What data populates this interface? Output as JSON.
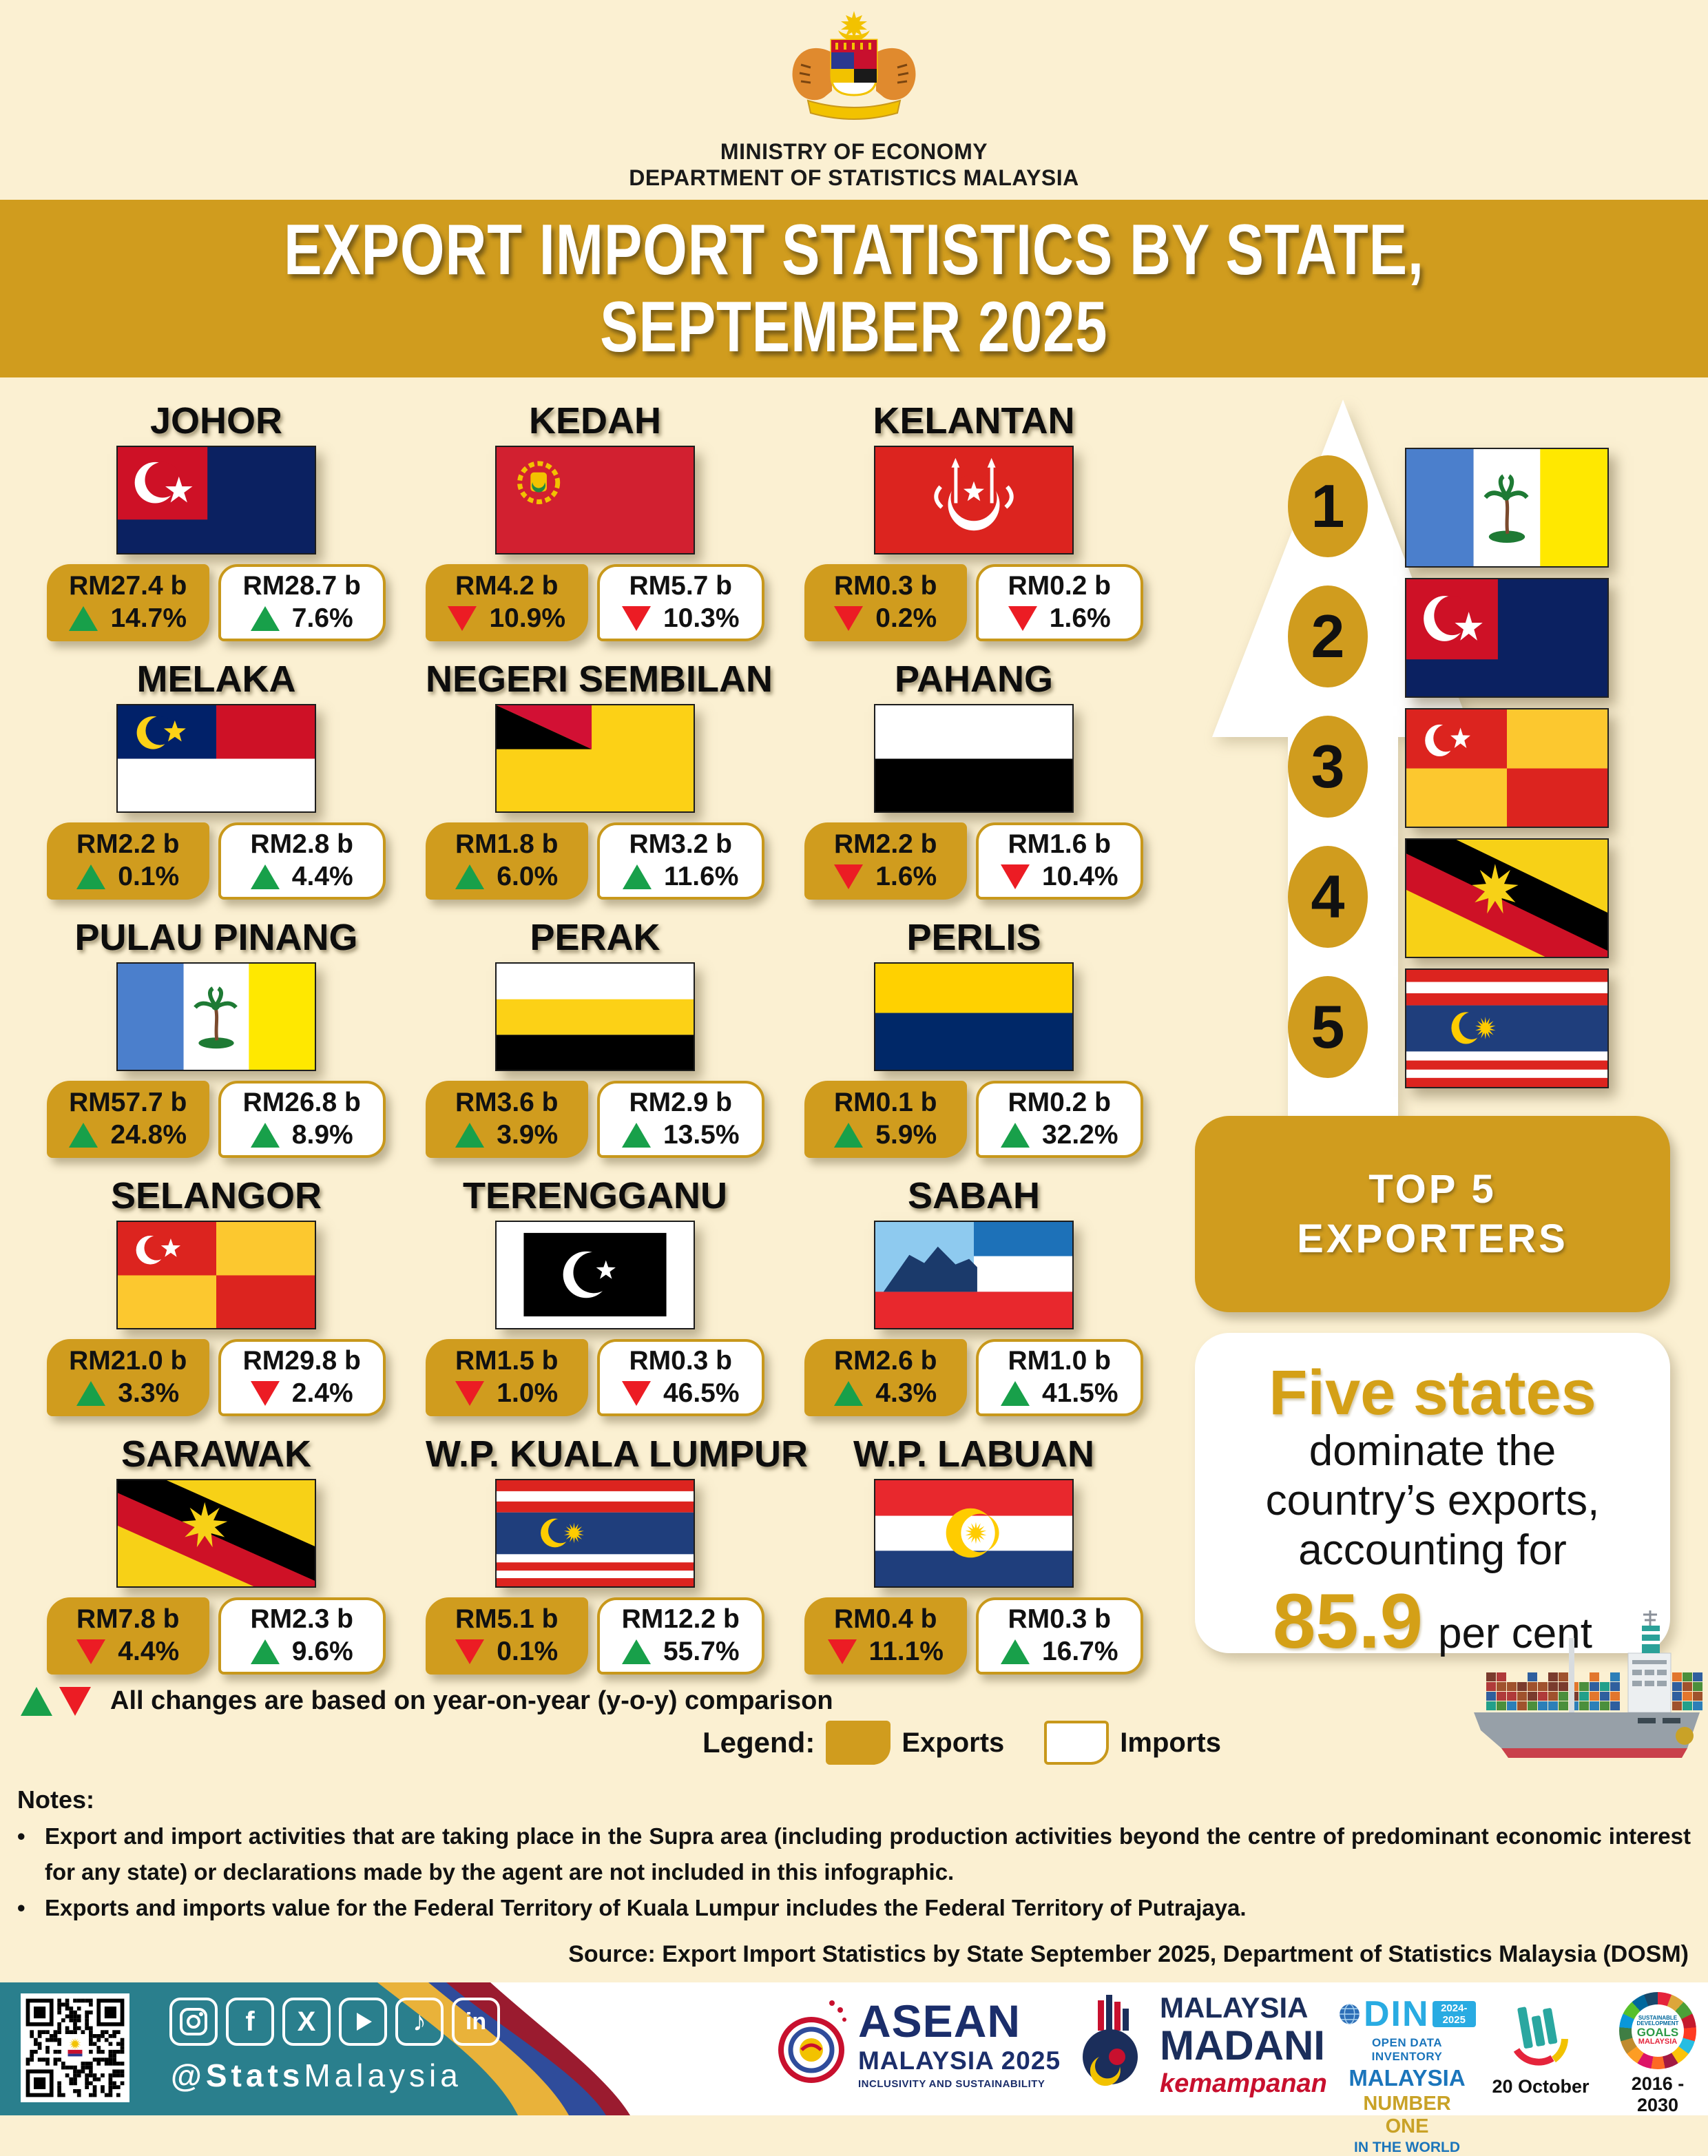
{
  "header": {
    "ministry": "MINISTRY OF ECONOMY",
    "department": "DEPARTMENT OF STATISTICS MALAYSIA"
  },
  "banner": {
    "line1": "EXPORT IMPORT STATISTICS BY STATE,",
    "line2": "SEPTEMBER 2025"
  },
  "states": [
    {
      "name": "JOHOR",
      "flag": "johor",
      "export": {
        "value": "RM27.4 b",
        "change": "14.7%",
        "direction": "up"
      },
      "import": {
        "value": "RM28.7 b",
        "change": "7.6%",
        "direction": "up"
      }
    },
    {
      "name": "KEDAH",
      "flag": "kedah",
      "export": {
        "value": "RM4.2 b",
        "change": "10.9%",
        "direction": "down"
      },
      "import": {
        "value": "RM5.7 b",
        "change": "10.3%",
        "direction": "down"
      }
    },
    {
      "name": "KELANTAN",
      "flag": "kelantan",
      "export": {
        "value": "RM0.3 b",
        "change": "0.2%",
        "direction": "down"
      },
      "import": {
        "value": "RM0.2 b",
        "change": "1.6%",
        "direction": "down"
      }
    },
    {
      "name": "MELAKA",
      "flag": "melaka",
      "export": {
        "value": "RM2.2 b",
        "change": "0.1%",
        "direction": "up"
      },
      "import": {
        "value": "RM2.8 b",
        "change": "4.4%",
        "direction": "up"
      }
    },
    {
      "name": "NEGERI SEMBILAN",
      "flag": "negeri-sembilan",
      "export": {
        "value": "RM1.8 b",
        "change": "6.0%",
        "direction": "up"
      },
      "import": {
        "value": "RM3.2 b",
        "change": "11.6%",
        "direction": "up"
      }
    },
    {
      "name": "PAHANG",
      "flag": "pahang",
      "export": {
        "value": "RM2.2 b",
        "change": "1.6%",
        "direction": "down"
      },
      "import": {
        "value": "RM1.6 b",
        "change": "10.4%",
        "direction": "down"
      }
    },
    {
      "name": "PULAU PINANG",
      "flag": "pulau-pinang",
      "export": {
        "value": "RM57.7 b",
        "change": "24.8%",
        "direction": "up"
      },
      "import": {
        "value": "RM26.8 b",
        "change": "8.9%",
        "direction": "up"
      }
    },
    {
      "name": "PERAK",
      "flag": "perak",
      "export": {
        "value": "RM3.6 b",
        "change": "3.9%",
        "direction": "up"
      },
      "import": {
        "value": "RM2.9 b",
        "change": "13.5%",
        "direction": "up"
      }
    },
    {
      "name": "PERLIS",
      "flag": "perlis",
      "export": {
        "value": "RM0.1 b",
        "change": "5.9%",
        "direction": "up"
      },
      "import": {
        "value": "RM0.2 b",
        "change": "32.2%",
        "direction": "up"
      }
    },
    {
      "name": "SELANGOR",
      "flag": "selangor",
      "export": {
        "value": "RM21.0 b",
        "change": "3.3%",
        "direction": "up"
      },
      "import": {
        "value": "RM29.8 b",
        "change": "2.4%",
        "direction": "down"
      }
    },
    {
      "name": "TERENGGANU",
      "flag": "terengganu",
      "export": {
        "value": "RM1.5 b",
        "change": "1.0%",
        "direction": "down"
      },
      "import": {
        "value": "RM0.3 b",
        "change": "46.5%",
        "direction": "down"
      }
    },
    {
      "name": "SABAH",
      "flag": "sabah",
      "export": {
        "value": "RM2.6 b",
        "change": "4.3%",
        "direction": "up"
      },
      "import": {
        "value": "RM1.0 b",
        "change": "41.5%",
        "direction": "up"
      }
    },
    {
      "name": "SARAWAK",
      "flag": "sarawak",
      "export": {
        "value": "RM7.8 b",
        "change": "4.4%",
        "direction": "down"
      },
      "import": {
        "value": "RM2.3 b",
        "change": "9.6%",
        "direction": "up"
      }
    },
    {
      "name": "W.P. KUALA LUMPUR",
      "flag": "kuala-lumpur",
      "export": {
        "value": "RM5.1 b",
        "change": "0.1%",
        "direction": "down"
      },
      "import": {
        "value": "RM12.2 b",
        "change": "55.7%",
        "direction": "up"
      }
    },
    {
      "name": "W.P. LABUAN",
      "flag": "labuan",
      "export": {
        "value": "RM0.4 b",
        "change": "11.1%",
        "direction": "down"
      },
      "import": {
        "value": "RM0.3 b",
        "change": "16.7%",
        "direction": "up"
      }
    }
  ],
  "top5": {
    "title_line1": "TOP 5",
    "title_line2": "EXPORTERS",
    "ranks": [
      {
        "rank": "1",
        "flag": "pulau-pinang",
        "state": "Pulau Pinang"
      },
      {
        "rank": "2",
        "flag": "johor",
        "state": "Johor"
      },
      {
        "rank": "3",
        "flag": "selangor",
        "state": "Selangor"
      },
      {
        "rank": "4",
        "flag": "sarawak",
        "state": "Sarawak"
      },
      {
        "rank": "5",
        "flag": "kuala-lumpur",
        "state": "W.P. Kuala Lumpur"
      }
    ]
  },
  "highlight": {
    "headline": "Five states",
    "line1": "dominate the",
    "line2": "country’s exports,",
    "line3": "accounting for",
    "value": "85.9",
    "unit": "per cent"
  },
  "yoy_note": "All changes are based on year-on-year (y-o-y) comparison",
  "legend": {
    "label": "Legend:",
    "exports": "Exports",
    "imports": "Imports"
  },
  "notes": {
    "title": "Notes:",
    "items": [
      "Export and import activities that are taking place in the Supra area (including production activities beyond the centre of predominant economic interest for any state) or declarations made by the agent are not included in this infographic.",
      "Exports and imports value for the Federal Territory of Kuala Lumpur includes the Federal Territory of Putrajaya."
    ]
  },
  "source": "Source: Export Import Statistics by State September 2025, Department of Statistics Malaysia (DOSM)",
  "footer": {
    "handle_bold": "@Stats",
    "handle_rest": "Malaysia",
    "social_icons": [
      "instagram",
      "facebook",
      "x-twitter",
      "youtube",
      "tiktok",
      "linkedin"
    ],
    "asean": {
      "title": "ASEAN",
      "subtitle": "MALAYSIA 2025",
      "tagline": "INCLUSIVITY AND SUSTAINABILITY"
    },
    "madani": {
      "line1": "MALAYSIA",
      "line2": "MADANI",
      "script": "kemampanan"
    },
    "odin": {
      "name": "DIN",
      "years": "2024-2025",
      "line1": "OPEN DATA INVENTORY",
      "line2": "MALAYSIA",
      "line3": "NUMBER ONE",
      "line4": "IN THE WORLD"
    },
    "stats_day": {
      "date": "20 October"
    },
    "sdg": {
      "goals": "GOALS",
      "malaysia": "MALAYSIA",
      "devel": "SUSTAINABLE DEVELOPMENT",
      "years": "2016 - 2030"
    }
  },
  "colors": {
    "gold": "#D09C1E",
    "cream": "#FBF0D2",
    "green": "#18A04A",
    "red": "#EC1C24",
    "teal": "#2A7F8D"
  },
  "chart_data": {
    "type": "table",
    "title": "Export Import Statistics by State, September 2025 (RM billion)",
    "categories": [
      "Johor",
      "Kedah",
      "Kelantan",
      "Melaka",
      "Negeri Sembilan",
      "Pahang",
      "Pulau Pinang",
      "Perak",
      "Perlis",
      "Selangor",
      "Terengganu",
      "Sabah",
      "Sarawak",
      "W.P. Kuala Lumpur",
      "W.P. Labuan"
    ],
    "series": [
      {
        "name": "Exports (RM b)",
        "values": [
          27.4,
          4.2,
          0.3,
          2.2,
          1.8,
          2.2,
          57.7,
          3.6,
          0.1,
          21.0,
          1.5,
          2.6,
          7.8,
          5.1,
          0.4
        ]
      },
      {
        "name": "Exports y-o-y change (%)",
        "values": [
          14.7,
          -10.9,
          -0.2,
          0.1,
          6.0,
          -1.6,
          24.8,
          3.9,
          5.9,
          3.3,
          -1.0,
          4.3,
          -4.4,
          -0.1,
          -11.1
        ]
      },
      {
        "name": "Imports (RM b)",
        "values": [
          28.7,
          5.7,
          0.2,
          2.8,
          3.2,
          1.6,
          26.8,
          2.9,
          0.2,
          29.8,
          0.3,
          1.0,
          2.3,
          12.2,
          0.3
        ]
      },
      {
        "name": "Imports y-o-y change (%)",
        "values": [
          7.6,
          -10.3,
          -1.6,
          4.4,
          11.6,
          -10.4,
          8.9,
          13.5,
          32.2,
          -2.4,
          -46.5,
          41.5,
          9.6,
          55.7,
          16.7
        ]
      }
    ],
    "top5_exporters_share_percent": 85.9
  }
}
